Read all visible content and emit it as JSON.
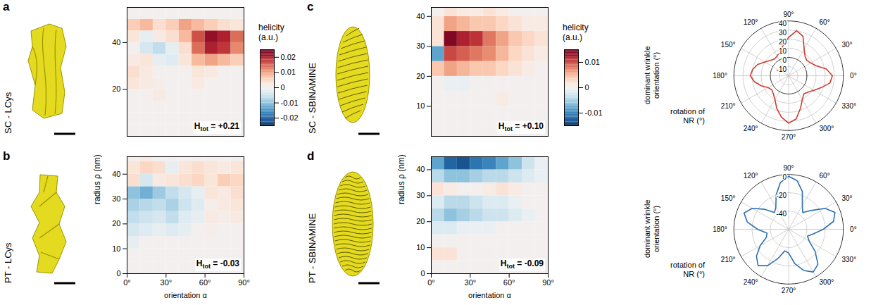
{
  "chart_data": [
    {
      "type": "heatmap",
      "xlabel": "orientation α",
      "ylabel": "radius ρ (nm)",
      "colorbar": {
        "label": "helicity (a.u.)",
        "range": [
          -0.025,
          0.025
        ],
        "ticks": [
          -0.02,
          -0.01,
          0,
          0.01,
          0.02
        ]
      },
      "panels": [
        {
          "panel": "a",
          "label": "SC - LCys",
          "tick_labels": "y",
          "xlim": [
            0,
            90
          ],
          "ylim": [
            0,
            55
          ],
          "yticks": [
            20,
            40
          ],
          "x_bins": [
            0,
            10,
            20,
            30,
            40,
            50,
            60,
            70,
            80,
            90
          ],
          "y_bins": [
            0,
            5,
            10,
            15,
            20,
            25,
            30,
            35,
            40,
            45,
            50,
            55
          ],
          "values": [
            [
              0,
              0,
              0,
              0,
              0,
              0,
              0,
              0,
              0
            ],
            [
              0,
              0,
              0,
              0,
              0,
              0,
              0,
              0,
              0
            ],
            [
              0,
              0,
              0,
              0,
              0,
              0,
              0,
              0,
              0
            ],
            [
              0,
              0,
              0.002,
              0,
              0,
              0,
              0,
              0,
              0
            ],
            [
              0.003,
              0.002,
              0.001,
              0,
              0,
              0.002,
              0,
              0,
              0
            ],
            [
              0.004,
              0.002,
              0,
              0,
              0,
              0.003,
              0.002,
              0,
              0
            ],
            [
              0.002,
              0.003,
              -0.002,
              -0.003,
              0.003,
              0.008,
              0.01,
              0.008,
              0.006
            ],
            [
              0,
              -0.004,
              -0.006,
              -0.002,
              0.004,
              0.014,
              0.02,
              0.018,
              0.012
            ],
            [
              0.003,
              -0.002,
              0.002,
              0.004,
              0.008,
              0.016,
              0.022,
              0.02,
              0.014
            ],
            [
              0.006,
              0.008,
              0.004,
              0.006,
              0.01,
              0.008,
              0.006,
              0.004,
              0.003
            ],
            [
              0,
              0,
              0,
              0,
              0,
              0,
              0,
              0,
              0
            ]
          ],
          "annotation": {
            "symbol": "H",
            "subscript": "tot",
            "text": "= +0.21"
          }
        },
        {
          "panel": "b",
          "label": "PT - LCys",
          "xlim": [
            0,
            90
          ],
          "xticks": [
            {
              "value": 0,
              "label": "0°"
            },
            {
              "value": 30,
              "label": "30°"
            },
            {
              "value": 60,
              "label": "60°"
            },
            {
              "value": 90,
              "label": "90°"
            }
          ],
          "ylim": [
            0,
            47
          ],
          "yticks": [
            0,
            10,
            20,
            30,
            40
          ],
          "x_bins": [
            0,
            10,
            20,
            30,
            40,
            50,
            60,
            70,
            80,
            90
          ],
          "y_bins": [
            0,
            5,
            10,
            15,
            20,
            25,
            30,
            35,
            40,
            45,
            50
          ],
          "values": [
            [
              0,
              0,
              0,
              0,
              0,
              0,
              0,
              0,
              0
            ],
            [
              0,
              0,
              0,
              0,
              0,
              0,
              0,
              0,
              0
            ],
            [
              -0.002,
              0,
              0,
              0,
              0,
              0,
              0,
              0,
              0
            ],
            [
              -0.004,
              -0.003,
              -0.002,
              -0.003,
              -0.002,
              0,
              0.001,
              0,
              0
            ],
            [
              -0.006,
              -0.005,
              -0.004,
              -0.006,
              -0.003,
              -0.002,
              0.002,
              0.001,
              0.002
            ],
            [
              -0.008,
              -0.007,
              -0.006,
              -0.008,
              -0.005,
              -0.003,
              0.001,
              0.002,
              0.003
            ],
            [
              -0.01,
              -0.012,
              -0.009,
              -0.006,
              -0.004,
              -0.002,
              0.003,
              0.002,
              0.004
            ],
            [
              0.004,
              -0.004,
              0.002,
              0.003,
              0.004,
              0.005,
              0.003,
              0.006,
              0.005
            ],
            [
              0.003,
              0.005,
              0.004,
              -0.002,
              0.003,
              0.004,
              0.003,
              0.002,
              0.003
            ],
            [
              0,
              0.002,
              0,
              0,
              0,
              0,
              0,
              0,
              0
            ]
          ],
          "annotation": {
            "symbol": "H",
            "subscript": "tot",
            "text": "= -0.03"
          }
        }
      ]
    },
    {
      "type": "heatmap",
      "xlabel": "orientation α",
      "ylabel": "radius ρ (nm)",
      "colorbar": {
        "label": "helicity (a.u.)",
        "range": [
          -0.015,
          0.015
        ],
        "ticks": [
          -0.01,
          0,
          0.01
        ]
      },
      "panels": [
        {
          "panel": "c",
          "label": "SC - SBINAMINE",
          "tick_labels": "y",
          "xlim": [
            0,
            90
          ],
          "ylim": [
            0,
            43
          ],
          "yticks": [
            10,
            20,
            30,
            40
          ],
          "x_bins": [
            0,
            10,
            20,
            30,
            40,
            50,
            60,
            70,
            80,
            90
          ],
          "y_bins": [
            0,
            5,
            10,
            15,
            20,
            25,
            30,
            35,
            40,
            45
          ],
          "values": [
            [
              0,
              0,
              0,
              0,
              0,
              0,
              0,
              0,
              0
            ],
            [
              0,
              0,
              0,
              0,
              0,
              0,
              0,
              0,
              0
            ],
            [
              0,
              0,
              0,
              0,
              0,
              0.001,
              0,
              0,
              0
            ],
            [
              0,
              -0.001,
              -0.001,
              0,
              0,
              0,
              0,
              0,
              0
            ],
            [
              0.004,
              0.006,
              0.005,
              0.004,
              0.004,
              0.003,
              0.002,
              0.001,
              0
            ],
            [
              -0.008,
              0.01,
              0.009,
              0.008,
              0.007,
              0.005,
              0.003,
              0.002,
              0.001
            ],
            [
              0.002,
              0.014,
              0.012,
              0.011,
              0.008,
              0.006,
              0.004,
              0.003,
              0.002
            ],
            [
              0.002,
              0.006,
              0.005,
              0.004,
              0.004,
              0.003,
              0.002,
              0.001,
              0.001
            ],
            [
              0,
              0.002,
              0.001,
              0.001,
              0.002,
              0.001,
              0,
              0,
              0
            ]
          ],
          "annotation": {
            "symbol": "H",
            "subscript": "tot",
            "text": "= +0.10"
          }
        },
        {
          "panel": "d",
          "label": "PT - SBINAMINE",
          "xlim": [
            0,
            90
          ],
          "xticks": [
            {
              "value": 0,
              "label": "0°"
            },
            {
              "value": 30,
              "label": "30°"
            },
            {
              "value": 60,
              "label": "60°"
            },
            {
              "value": 90,
              "label": "90°"
            }
          ],
          "ylim": [
            0,
            45
          ],
          "yticks": [
            0,
            10,
            20,
            30,
            40
          ],
          "x_bins": [
            0,
            10,
            20,
            30,
            40,
            50,
            60,
            70,
            80,
            90
          ],
          "y_bins": [
            0,
            5,
            10,
            15,
            20,
            25,
            30,
            35,
            40,
            45
          ],
          "values": [
            [
              0,
              0,
              0,
              0,
              0,
              0,
              0,
              0,
              0
            ],
            [
              0.002,
              0.002,
              0,
              0,
              0,
              0,
              0,
              0,
              0
            ],
            [
              0,
              0,
              0,
              0,
              0,
              0,
              0,
              0,
              0
            ],
            [
              -0.002,
              -0.002,
              -0.001,
              -0.001,
              -0.001,
              0,
              0,
              0,
              0
            ],
            [
              -0.004,
              -0.006,
              -0.005,
              -0.004,
              -0.003,
              -0.003,
              -0.002,
              -0.001,
              0
            ],
            [
              -0.002,
              -0.004,
              -0.004,
              -0.003,
              -0.002,
              -0.002,
              -0.001,
              0,
              0
            ],
            [
              0.002,
              0.001,
              0,
              0,
              0.001,
              0.002,
              0.001,
              0,
              0
            ],
            [
              -0.004,
              -0.006,
              -0.006,
              -0.005,
              -0.004,
              -0.004,
              -0.003,
              -0.002,
              -0.001
            ],
            [
              -0.008,
              -0.012,
              -0.013,
              -0.011,
              -0.01,
              -0.008,
              -0.006,
              -0.003,
              -0.001
            ]
          ],
          "annotation": {
            "symbol": "H",
            "subscript": "tot",
            "text": "= -0.09"
          }
        }
      ]
    },
    {
      "type": "polar",
      "xlabel": "rotation of NR (°)",
      "ylabel": "dominant wrinkle orientation (°)",
      "color": "#cc3b2e",
      "xlim": [
        0,
        360
      ],
      "xticks": [
        {
          "value": 0,
          "label": "0°"
        },
        {
          "value": 30,
          "label": "30°"
        },
        {
          "value": 60,
          "label": "60°"
        },
        {
          "value": 90,
          "label": "90°"
        },
        {
          "value": 120,
          "label": "120°"
        },
        {
          "value": 150,
          "label": "150°"
        },
        {
          "value": 180,
          "label": "180°"
        },
        {
          "value": 210,
          "label": "210°"
        },
        {
          "value": 240,
          "label": "240°"
        },
        {
          "value": 270,
          "label": "270°"
        },
        {
          "value": 300,
          "label": "300°"
        },
        {
          "value": 330,
          "label": "330°"
        }
      ],
      "ylim": [
        -20,
        40
      ],
      "yticks": [
        -10,
        0,
        10,
        20,
        30,
        40
      ],
      "x": [
        0,
        10,
        20,
        30,
        40,
        50,
        60,
        70,
        80,
        90,
        100,
        110,
        120,
        130,
        140,
        150,
        160,
        170,
        180,
        190,
        200,
        210,
        220,
        230,
        240,
        250,
        260,
        270,
        280,
        290,
        300,
        310,
        320,
        330,
        340,
        350
      ],
      "values": [
        28,
        22,
        12,
        8,
        6,
        8,
        14,
        26,
        30,
        22,
        14,
        8,
        5,
        4,
        6,
        10,
        16,
        20,
        22,
        18,
        12,
        6,
        4,
        6,
        10,
        18,
        26,
        32,
        28,
        18,
        10,
        6,
        8,
        12,
        18,
        26
      ]
    },
    {
      "type": "polar",
      "xlabel": "rotation of NR (°)",
      "ylabel": "dominant wrinkle orientation (°)",
      "color": "#2e6fb5",
      "xlim": [
        0,
        360
      ],
      "xticks": [
        {
          "value": 0,
          "label": "0°"
        },
        {
          "value": 30,
          "label": "30°"
        },
        {
          "value": 60,
          "label": "60°"
        },
        {
          "value": 90,
          "label": "90°"
        },
        {
          "value": 120,
          "label": "120°"
        },
        {
          "value": 150,
          "label": "150°"
        },
        {
          "value": 180,
          "label": "180°"
        },
        {
          "value": 210,
          "label": "210°"
        },
        {
          "value": 240,
          "label": "240°"
        },
        {
          "value": 270,
          "label": "270°"
        },
        {
          "value": 300,
          "label": "300°"
        },
        {
          "value": 330,
          "label": "330°"
        }
      ],
      "ylim": [
        -60,
        0
      ],
      "yticks": [
        -40,
        -20,
        0
      ],
      "x": [
        0,
        10,
        20,
        30,
        40,
        50,
        60,
        70,
        80,
        90,
        100,
        110,
        120,
        130,
        140,
        150,
        160,
        170,
        180,
        190,
        200,
        210,
        220,
        230,
        240,
        250,
        260,
        270,
        280,
        290,
        300,
        310,
        320,
        330,
        340,
        350
      ],
      "values": [
        -22,
        -10,
        -6,
        -14,
        -28,
        -36,
        -30,
        -16,
        -6,
        -2,
        -8,
        -20,
        -32,
        -36,
        -26,
        -14,
        -8,
        -14,
        -26,
        -36,
        -34,
        -24,
        -14,
        -8,
        -14,
        -26,
        -36,
        -34,
        -22,
        -12,
        -6,
        -10,
        -22,
        -34,
        -38,
        -32
      ]
    }
  ]
}
